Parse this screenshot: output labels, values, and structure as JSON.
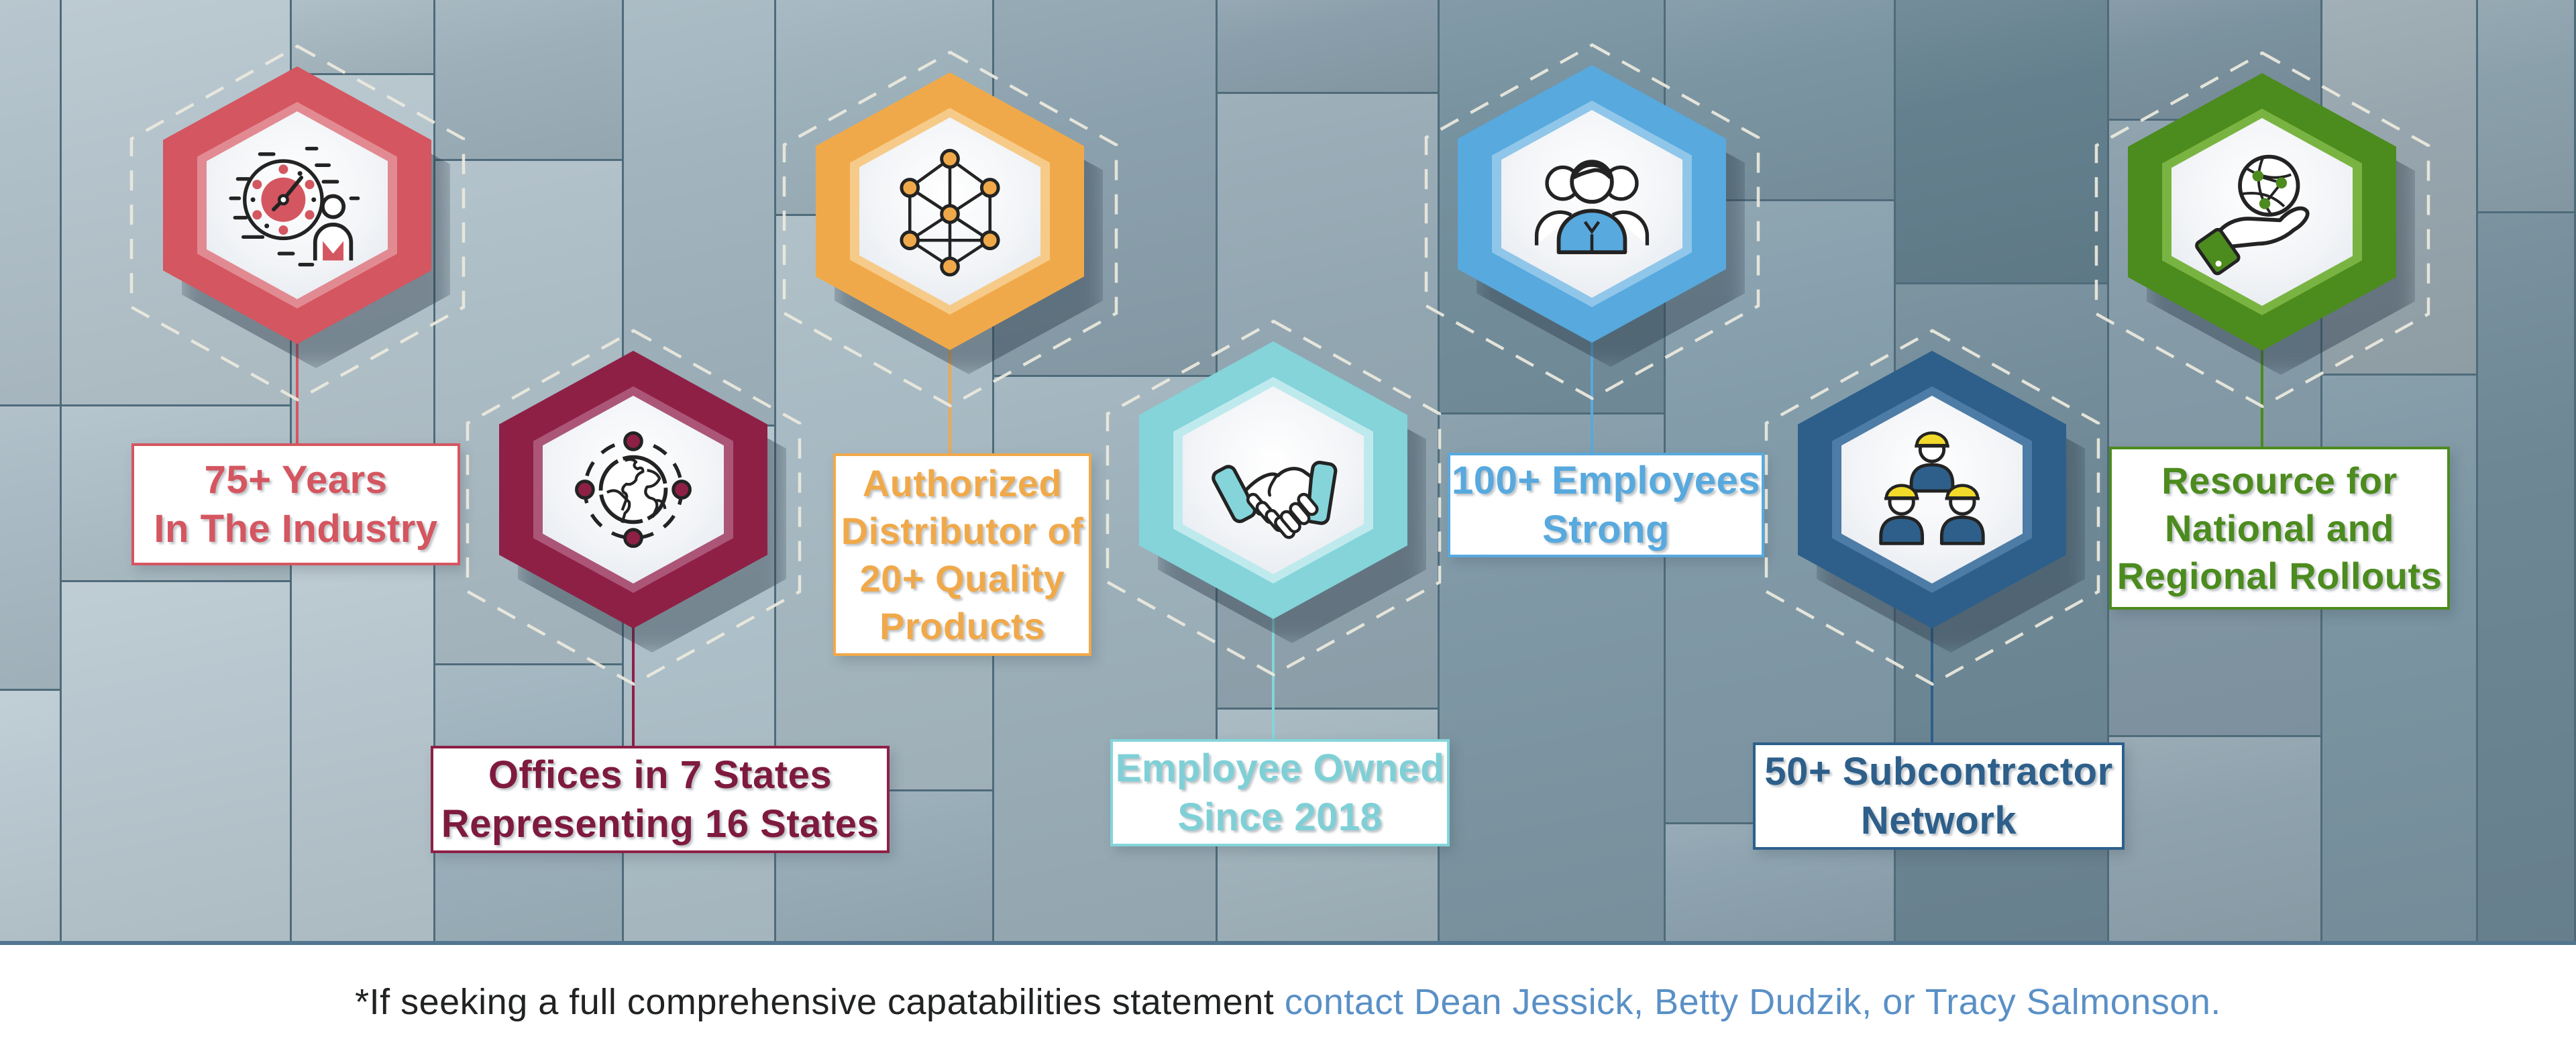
{
  "title": "Company capabilities hexagon infographic",
  "items": [
    {
      "id": "years-in-industry",
      "color": "#d45660",
      "ring_color": "#e28a92",
      "text_color": "#d45660",
      "icon": "clock-person-icon",
      "lines": [
        "75+ Years",
        "In The Industry"
      ]
    },
    {
      "id": "offices",
      "color": "#8e2046",
      "ring_color": "#ac5677",
      "text_color": "#7e1a3e",
      "icon": "globe-orbit-icon",
      "lines": [
        "Offices in 7 States",
        "Representing 16 States"
      ]
    },
    {
      "id": "authorized-distributor",
      "color": "#f0a94a",
      "ring_color": "#f6cb89",
      "text_color": "#f0a94a",
      "icon": "network-nodes-icon",
      "lines": [
        "Authorized",
        "Distributor of",
        "20+ Quality",
        "Products"
      ]
    },
    {
      "id": "employee-owned",
      "color": "#84d4da",
      "ring_color": "#bfeaed",
      "text_color": "#7fd0d6",
      "icon": "handshake-icon",
      "lines": [
        "Employee Owned",
        "Since 2018"
      ]
    },
    {
      "id": "employees-strong",
      "color": "#57a9de",
      "ring_color": "#90c6e9",
      "text_color": "#57a9de",
      "icon": "employees-group-icon",
      "lines": [
        "100+ Employees",
        "Strong"
      ]
    },
    {
      "id": "subcontractor-network",
      "color": "#2d5f8a",
      "ring_color": "#4d7ca6",
      "text_color": "#2d5f8a",
      "icon": "workers-team-icon",
      "accent": "#f2da2a",
      "lines": [
        "50+ Subcontractor",
        "Network"
      ]
    },
    {
      "id": "national-rollouts",
      "color": "#4c8b1e",
      "ring_color": "#79b442",
      "text_color": "#4c8b1e",
      "icon": "hand-globe-icon",
      "lines": [
        "Resource for",
        "National and",
        "Regional Rollouts"
      ]
    }
  ],
  "caption": {
    "prefix": "*If seeking a full comprehensive capatabilities statement ",
    "contact": "contact Dean Jessick, Betty Dudzik, or Tracy Salmonson.",
    "prefix_color": "#202223",
    "contact_color": "#5a90c6"
  },
  "background": {
    "wall_base": "#4f6b7a",
    "footer_strip": "#ffffff",
    "divider": "#527590",
    "dash_outline": "#eceade"
  }
}
